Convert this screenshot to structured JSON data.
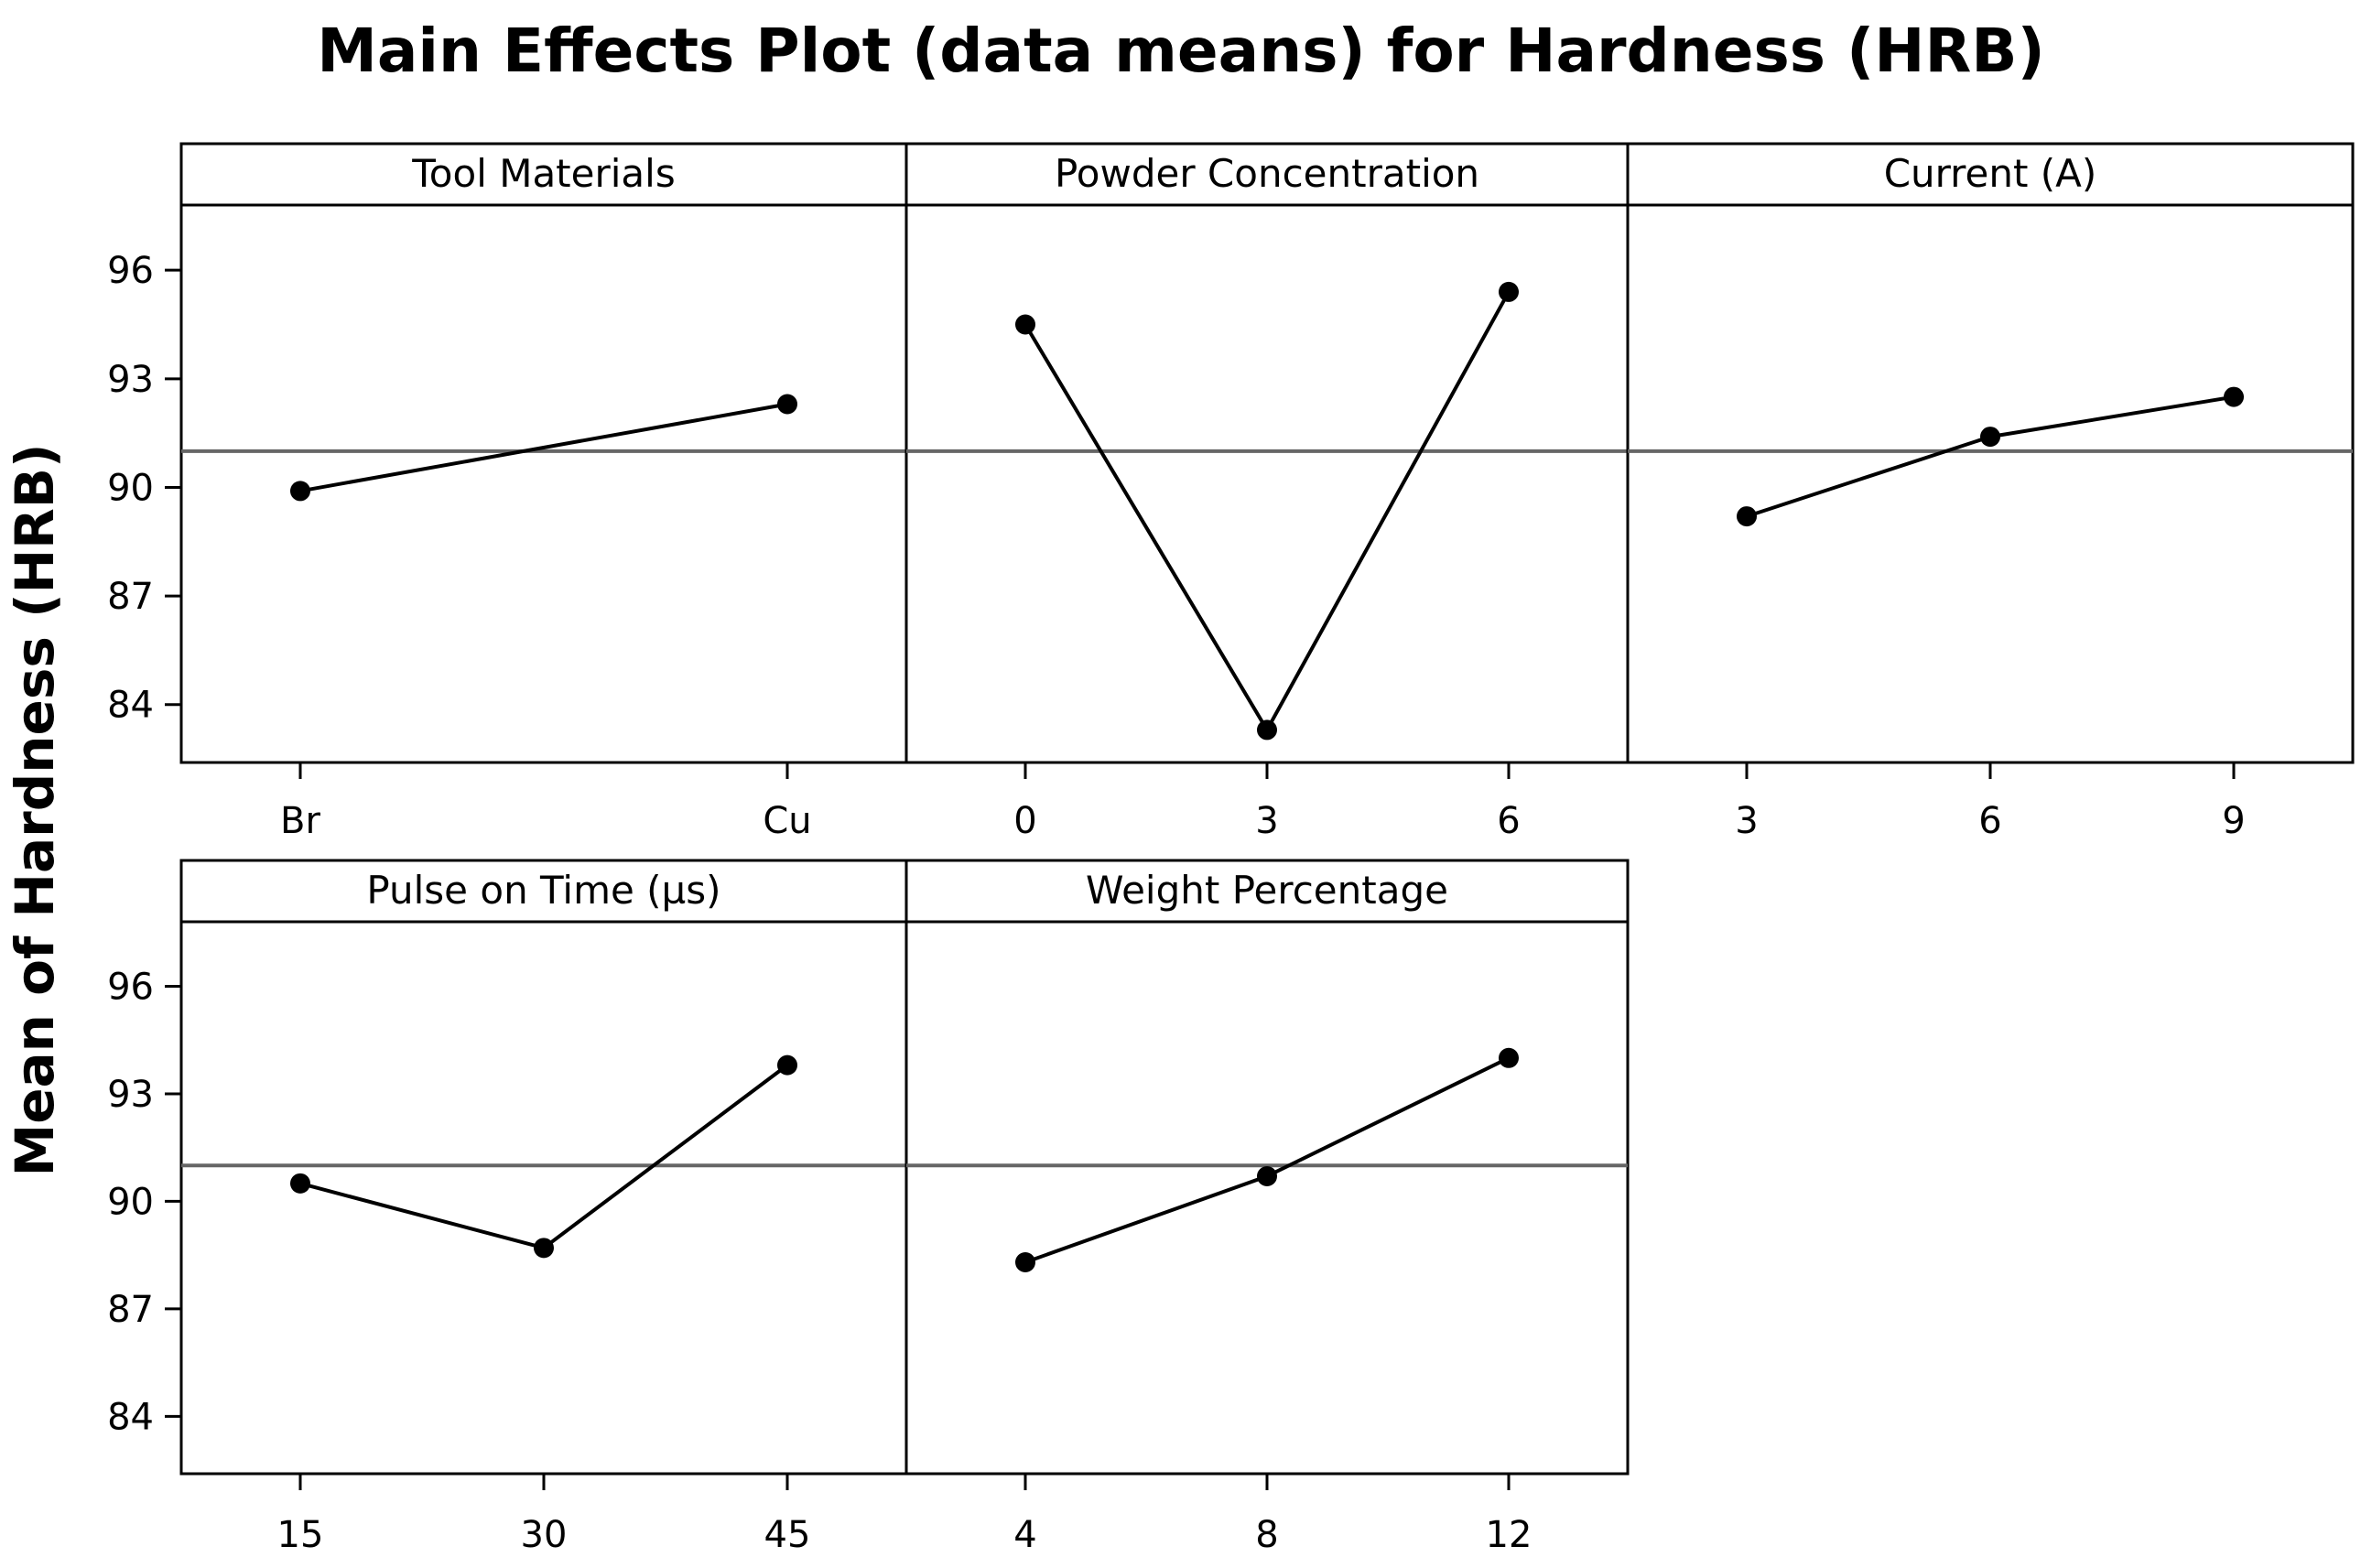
{
  "chart_data": {
    "type": "line",
    "title": "Main Effects Plot (data means) for Hardness (HRB)",
    "ylabel": "Mean of Hardness (HRB)",
    "ylim": [
      82.4,
      97.8
    ],
    "yticks": [
      84,
      87,
      90,
      93,
      96
    ],
    "grand_mean": 91.0,
    "grid": false,
    "panels": [
      {
        "name": "Tool Materials",
        "categories": [
          "Br",
          "Cu"
        ],
        "values": [
          89.9,
          92.3
        ]
      },
      {
        "name": "Powder Concentration",
        "categories": [
          "0",
          "3",
          "6"
        ],
        "values": [
          94.5,
          83.3,
          95.4
        ]
      },
      {
        "name": "Current (A)",
        "categories": [
          "3",
          "6",
          "9"
        ],
        "values": [
          89.2,
          91.4,
          92.5
        ]
      },
      {
        "name": "Pulse on Time (µs)",
        "categories": [
          "15",
          "30",
          "45"
        ],
        "values": [
          90.5,
          88.7,
          93.8
        ]
      },
      {
        "name": "Weight Percentage",
        "categories": [
          "4",
          "8",
          "12"
        ],
        "values": [
          88.3,
          90.7,
          94.0
        ]
      }
    ]
  }
}
